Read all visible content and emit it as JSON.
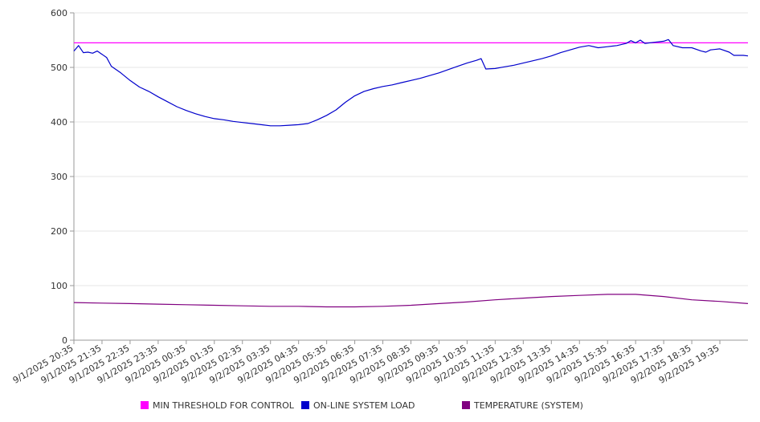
{
  "chart_data": {
    "type": "line",
    "title": "",
    "xlabel": "",
    "ylabel": "",
    "ylim": [
      0,
      600
    ],
    "yticks": [
      0,
      100,
      200,
      300,
      400,
      500,
      600
    ],
    "x_ticks": [
      "9/1/2025 20:35",
      "9/1/2025 21:35",
      "9/1/2025 22:35",
      "9/1/2025 23:35",
      "9/2/2025 00:35",
      "9/2/2025 01:35",
      "9/2/2025 02:35",
      "9/2/2025 03:35",
      "9/2/2025 04:35",
      "9/2/2025 05:35",
      "9/2/2025 06:35",
      "9/2/2025 07:35",
      "9/2/2025 08:35",
      "9/2/2025 09:35",
      "9/2/2025 10:35",
      "9/2/2025 11:35",
      "9/2/2025 12:35",
      "9/2/2025 13:35",
      "9/2/2025 14:35",
      "9/2/2025 15:35",
      "9/2/2025 16:35",
      "9/2/2025 17:35",
      "9/2/2025 18:35",
      "9/2/2025 19:35"
    ],
    "x_start": "9/1/2025 20:35",
    "x_end": "9/2/2025 20:35",
    "grid": "horizontal",
    "legend_position": "bottom",
    "series": [
      {
        "name": "MIN THRESHOLD FOR CONTROL",
        "color": "#ff00ff",
        "points": [
          [
            "9/1/2025 20:35",
            545
          ],
          [
            "9/2/2025 20:35",
            545
          ]
        ]
      },
      {
        "name": "ON-LINE SYSTEM LOAD",
        "color": "#0000cc",
        "points": [
          [
            "9/1/2025 20:35",
            530
          ],
          [
            "9/1/2025 20:45",
            540
          ],
          [
            "9/1/2025 20:55",
            527
          ],
          [
            "9/1/2025 21:05",
            528
          ],
          [
            "9/1/2025 21:15",
            526
          ],
          [
            "9/1/2025 21:25",
            530
          ],
          [
            "9/1/2025 21:35",
            524
          ],
          [
            "9/1/2025 21:45",
            518
          ],
          [
            "9/1/2025 21:55",
            502
          ],
          [
            "9/1/2025 22:15",
            490
          ],
          [
            "9/1/2025 22:35",
            476
          ],
          [
            "9/1/2025 22:55",
            464
          ],
          [
            "9/1/2025 23:15",
            456
          ],
          [
            "9/1/2025 23:35",
            446
          ],
          [
            "9/1/2025 23:55",
            437
          ],
          [
            "9/2/2025 00:15",
            428
          ],
          [
            "9/2/2025 00:35",
            421
          ],
          [
            "9/2/2025 00:55",
            415
          ],
          [
            "9/2/2025 01:15",
            410
          ],
          [
            "9/2/2025 01:35",
            406
          ],
          [
            "9/2/2025 01:55",
            404
          ],
          [
            "9/2/2025 02:15",
            401
          ],
          [
            "9/2/2025 02:35",
            399
          ],
          [
            "9/2/2025 02:55",
            397
          ],
          [
            "9/2/2025 03:15",
            395
          ],
          [
            "9/2/2025 03:35",
            393
          ],
          [
            "9/2/2025 03:55",
            393
          ],
          [
            "9/2/2025 04:15",
            394
          ],
          [
            "9/2/2025 04:35",
            395
          ],
          [
            "9/2/2025 04:55",
            397
          ],
          [
            "9/2/2025 05:15",
            404
          ],
          [
            "9/2/2025 05:35",
            412
          ],
          [
            "9/2/2025 05:55",
            422
          ],
          [
            "9/2/2025 06:15",
            436
          ],
          [
            "9/2/2025 06:35",
            448
          ],
          [
            "9/2/2025 06:55",
            456
          ],
          [
            "9/2/2025 07:15",
            461
          ],
          [
            "9/2/2025 07:35",
            465
          ],
          [
            "9/2/2025 07:55",
            468
          ],
          [
            "9/2/2025 08:15",
            472
          ],
          [
            "9/2/2025 08:35",
            476
          ],
          [
            "9/2/2025 08:55",
            480
          ],
          [
            "9/2/2025 09:15",
            485
          ],
          [
            "9/2/2025 09:35",
            490
          ],
          [
            "9/2/2025 09:55",
            496
          ],
          [
            "9/2/2025 10:15",
            502
          ],
          [
            "9/2/2025 10:35",
            508
          ],
          [
            "9/2/2025 10:55",
            513
          ],
          [
            "9/2/2025 11:05",
            516
          ],
          [
            "9/2/2025 11:15",
            497
          ],
          [
            "9/2/2025 11:35",
            498
          ],
          [
            "9/2/2025 11:55",
            501
          ],
          [
            "9/2/2025 12:15",
            504
          ],
          [
            "9/2/2025 12:35",
            508
          ],
          [
            "9/2/2025 12:55",
            512
          ],
          [
            "9/2/2025 13:15",
            516
          ],
          [
            "9/2/2025 13:35",
            521
          ],
          [
            "9/2/2025 13:55",
            527
          ],
          [
            "9/2/2025 14:15",
            532
          ],
          [
            "9/2/2025 14:35",
            537
          ],
          [
            "9/2/2025 14:55",
            540
          ],
          [
            "9/2/2025 15:15",
            536
          ],
          [
            "9/2/2025 15:35",
            538
          ],
          [
            "9/2/2025 15:55",
            540
          ],
          [
            "9/2/2025 16:15",
            544
          ],
          [
            "9/2/2025 16:25",
            549
          ],
          [
            "9/2/2025 16:35",
            545
          ],
          [
            "9/2/2025 16:45",
            550
          ],
          [
            "9/2/2025 16:55",
            544
          ],
          [
            "9/2/2025 17:15",
            546
          ],
          [
            "9/2/2025 17:35",
            548
          ],
          [
            "9/2/2025 17:45",
            551
          ],
          [
            "9/2/2025 17:55",
            540
          ],
          [
            "9/2/2025 18:15",
            536
          ],
          [
            "9/2/2025 18:35",
            536
          ],
          [
            "9/2/2025 18:55",
            530
          ],
          [
            "9/2/2025 19:05",
            528
          ],
          [
            "9/2/2025 19:15",
            532
          ],
          [
            "9/2/2025 19:35",
            534
          ],
          [
            "9/2/2025 19:55",
            528
          ],
          [
            "9/2/2025 20:05",
            522
          ],
          [
            "9/2/2025 20:25",
            522
          ],
          [
            "9/2/2025 20:35",
            521
          ]
        ]
      },
      {
        "name": "TEMPERATURE (SYSTEM)",
        "color": "#800080",
        "points": [
          [
            "9/1/2025 20:35",
            69
          ],
          [
            "9/1/2025 21:35",
            68
          ],
          [
            "9/1/2025 22:35",
            67
          ],
          [
            "9/1/2025 23:35",
            66
          ],
          [
            "9/2/2025 00:35",
            65
          ],
          [
            "9/2/2025 01:35",
            64
          ],
          [
            "9/2/2025 02:35",
            63
          ],
          [
            "9/2/2025 03:35",
            62
          ],
          [
            "9/2/2025 04:35",
            62
          ],
          [
            "9/2/2025 05:35",
            61
          ],
          [
            "9/2/2025 06:35",
            61
          ],
          [
            "9/2/2025 07:35",
            62
          ],
          [
            "9/2/2025 08:35",
            64
          ],
          [
            "9/2/2025 09:35",
            67
          ],
          [
            "9/2/2025 10:35",
            70
          ],
          [
            "9/2/2025 11:35",
            74
          ],
          [
            "9/2/2025 12:35",
            77
          ],
          [
            "9/2/2025 13:35",
            80
          ],
          [
            "9/2/2025 14:35",
            82
          ],
          [
            "9/2/2025 15:35",
            84
          ],
          [
            "9/2/2025 16:35",
            84
          ],
          [
            "9/2/2025 17:35",
            80
          ],
          [
            "9/2/2025 18:35",
            74
          ],
          [
            "9/2/2025 19:35",
            71
          ],
          [
            "9/2/2025 20:35",
            67
          ]
        ]
      }
    ]
  }
}
